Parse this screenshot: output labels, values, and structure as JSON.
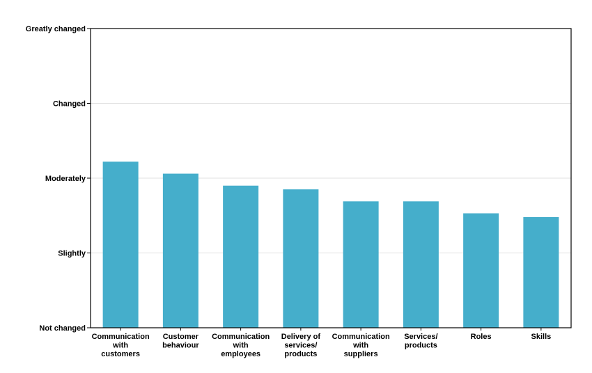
{
  "chart_data": {
    "type": "bar",
    "title": "",
    "xlabel": "",
    "ylabel": "",
    "categories": [
      "Communication with customers",
      "Customer behaviour",
      "Communication with employees",
      "Delivery of services/ products",
      "Communication with suppliers",
      "Services/ products",
      "Roles",
      "Skills"
    ],
    "category_lines": [
      [
        "Communication",
        "with",
        "customers"
      ],
      [
        "Customer",
        "behaviour"
      ],
      [
        "Communication",
        "with",
        "employees"
      ],
      [
        "Delivery of",
        "services/",
        "products"
      ],
      [
        "Communication",
        "with",
        "suppliers"
      ],
      [
        "Services/",
        "products"
      ],
      [
        "Roles"
      ],
      [
        "Skills"
      ]
    ],
    "values": [
      2.22,
      2.06,
      1.9,
      1.85,
      1.69,
      1.69,
      1.53,
      1.48
    ],
    "y_ticks": [
      {
        "value": 0,
        "label": "Not changed"
      },
      {
        "value": 1,
        "label": "Slightly"
      },
      {
        "value": 2,
        "label": "Moderately"
      },
      {
        "value": 3,
        "label": "Changed"
      },
      {
        "value": 4,
        "label": "Greatly changed"
      }
    ],
    "ylim": [
      0,
      4
    ],
    "grid": true,
    "bar_color": "#45AECB",
    "grid_color": "#E0E0E0"
  }
}
